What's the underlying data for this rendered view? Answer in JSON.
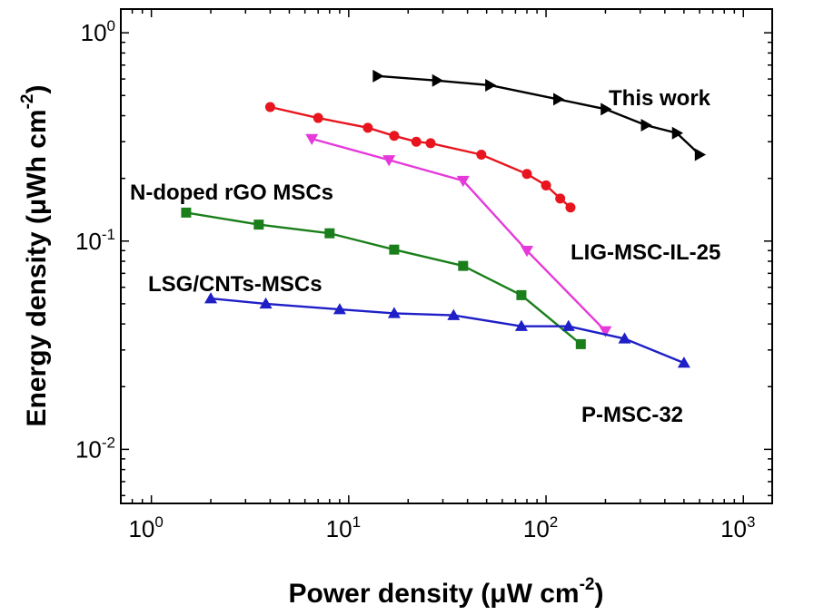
{
  "chart_data": {
    "type": "line",
    "title": "",
    "xlabel": {
      "main": "Power density (μW cm",
      "exp": "-2",
      "close": ")"
    },
    "ylabel": {
      "main": "Energy density (μWh cm",
      "exp": "-2",
      "close": ")"
    },
    "x_scale": "log",
    "y_scale": "log",
    "xlim": [
      0.7,
      1400
    ],
    "ylim": [
      0.0055,
      1.3
    ],
    "xticks": [
      {
        "value": 1,
        "base": "10",
        "exp": "0"
      },
      {
        "value": 10,
        "base": "10",
        "exp": "1"
      },
      {
        "value": 100,
        "base": "10",
        "exp": "2"
      },
      {
        "value": 1000,
        "base": "10",
        "exp": "3"
      }
    ],
    "yticks": [
      {
        "value": 0.01,
        "base": "10",
        "exp": "-2"
      },
      {
        "value": 0.1,
        "base": "10",
        "exp": "-1"
      },
      {
        "value": 1,
        "base": "10",
        "exp": "0"
      }
    ],
    "grid": false,
    "legend": "none",
    "series": [
      {
        "name": "This work",
        "color": "#000000",
        "marker": "triangle-right",
        "x": [
          14,
          28,
          52,
          115,
          200,
          320,
          460,
          600
        ],
        "y": [
          0.62,
          0.59,
          0.56,
          0.48,
          0.43,
          0.36,
          0.33,
          0.26
        ]
      },
      {
        "name": "LIG-MSC-IL-25",
        "color": "#e8141e",
        "marker": "circle",
        "x": [
          4,
          7,
          12.5,
          17,
          22,
          26,
          47,
          80,
          100,
          118,
          133
        ],
        "y": [
          0.44,
          0.39,
          0.35,
          0.32,
          0.3,
          0.295,
          0.26,
          0.21,
          0.185,
          0.16,
          0.145
        ]
      },
      {
        "name": "N-doped rGO MSCs",
        "color": "#e53ad9",
        "marker": "triangle-down",
        "x": [
          6.5,
          16,
          38,
          80,
          200
        ],
        "y": [
          0.31,
          0.245,
          0.195,
          0.09,
          0.037
        ]
      },
      {
        "name": "LSG/CNTs-MSCs",
        "color": "#1a7f1a",
        "marker": "square",
        "x": [
          1.5,
          3.5,
          8,
          17,
          38,
          75,
          150
        ],
        "y": [
          0.137,
          0.12,
          0.109,
          0.091,
          0.076,
          0.055,
          0.032
        ]
      },
      {
        "name": "P-MSC-32",
        "color": "#1f1fc8",
        "marker": "triangle-up",
        "x": [
          2,
          3.8,
          9,
          17,
          34,
          75,
          130,
          250,
          500
        ],
        "y": [
          0.053,
          0.05,
          0.047,
          0.045,
          0.044,
          0.039,
          0.039,
          0.034,
          0.026
        ]
      }
    ],
    "annotations": [
      {
        "text": "This work",
        "series": "This work"
      },
      {
        "text": "LIG-MSC-IL-25",
        "series": "LIG-MSC-IL-25"
      },
      {
        "text": "N-doped rGO MSCs",
        "series": "N-doped rGO MSCs"
      },
      {
        "text": "LSG/CNTs-MSCs",
        "series": "LSG/CNTs-MSCs"
      },
      {
        "text": "P-MSC-32",
        "series": "P-MSC-32"
      }
    ]
  }
}
